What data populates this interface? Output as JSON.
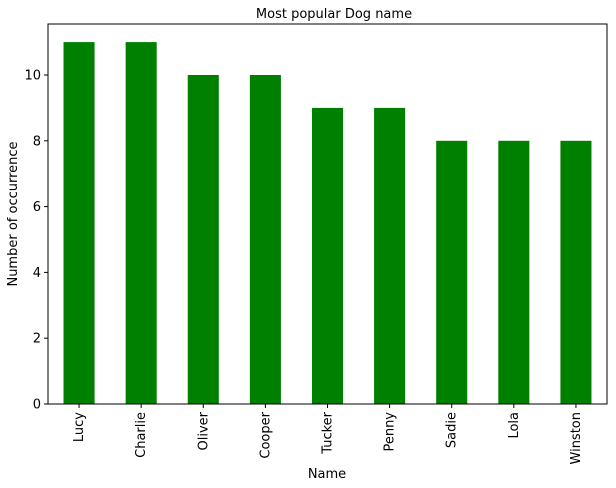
{
  "chart_data": {
    "type": "bar",
    "title": "Most popular Dog name",
    "xlabel": "Name",
    "ylabel": "Number of occurrence",
    "categories": [
      "Lucy",
      "Charlie",
      "Oliver",
      "Cooper",
      "Tucker",
      "Penny",
      "Sadie",
      "Lola",
      "Winston"
    ],
    "values": [
      11,
      11,
      10,
      10,
      9,
      9,
      8,
      8,
      8
    ],
    "ylim": [
      0,
      11.55
    ],
    "yticks": [
      0,
      2,
      4,
      6,
      8,
      10
    ],
    "ytick_labels": [
      "0",
      "2",
      "4",
      "6",
      "8",
      "10"
    ],
    "bar_color": "#008000",
    "grid": false,
    "legend": false
  }
}
